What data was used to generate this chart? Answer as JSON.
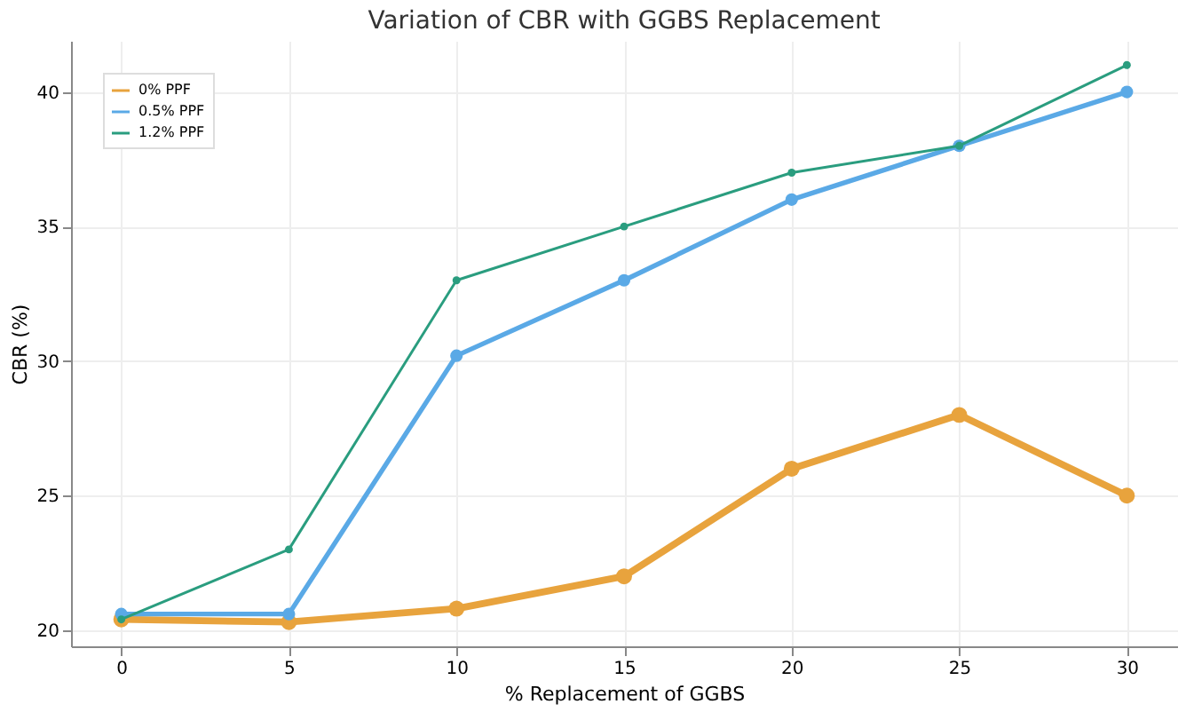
{
  "chart_data": {
    "type": "line",
    "title": "Variation of CBR with GGBS Replacement",
    "xlabel": "% Replacement of GGBS",
    "ylabel": "CBR (%)",
    "x": [
      0,
      5,
      10,
      15,
      20,
      25,
      30
    ],
    "series": [
      {
        "name": "0% PPF",
        "color": "#e8a33d",
        "values": [
          20.4,
          20.3,
          20.8,
          22,
          26,
          28,
          25
        ]
      },
      {
        "name": "0.5% PPF",
        "color": "#5aa9e6",
        "values": [
          20.6,
          20.6,
          30.2,
          33,
          36,
          38,
          40
        ]
      },
      {
        "name": "1.2% PPF",
        "color": "#2a9d7f",
        "values": [
          20.4,
          23,
          33,
          35,
          37,
          38,
          41
        ]
      }
    ],
    "xlim": [
      -1.5,
      31.5
    ],
    "xticks": [
      0,
      5,
      10,
      15,
      20,
      25,
      30
    ],
    "ylim": [
      19.4,
      41.9
    ],
    "yticks": [
      20,
      25,
      30,
      35,
      40
    ],
    "grid": true,
    "legend": "top left",
    "marker": "circle",
    "line_style": "solid"
  }
}
